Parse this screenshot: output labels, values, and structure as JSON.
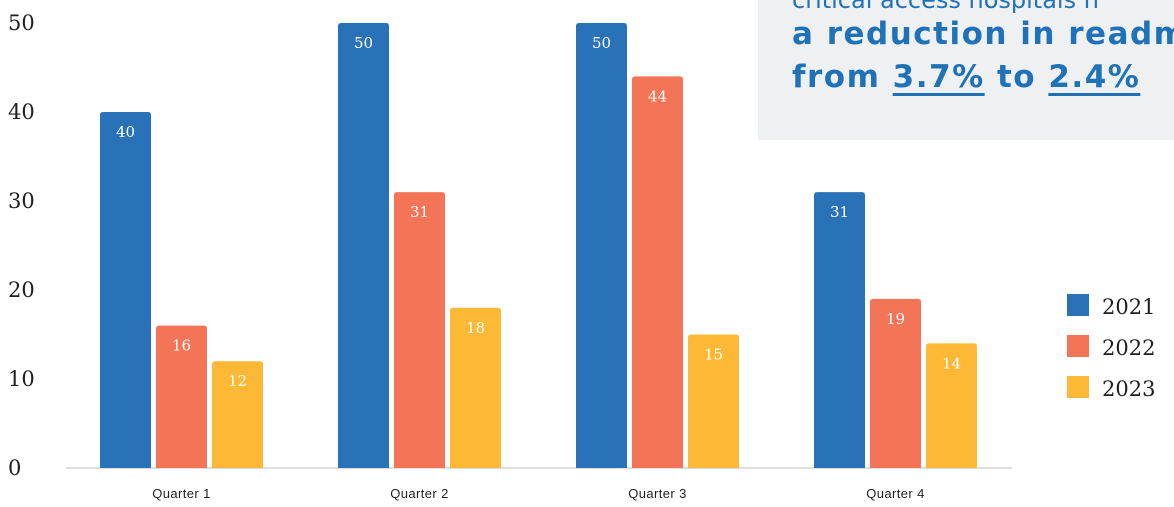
{
  "chart_data": {
    "type": "bar",
    "categories": [
      "Quarter 1",
      "Quarter 2",
      "Quarter 3",
      "Quarter 4"
    ],
    "series": [
      {
        "name": "2021",
        "values": [
          40,
          50,
          50,
          31
        ],
        "color": "#2a72b8"
      },
      {
        "name": "2022",
        "values": [
          16,
          31,
          44,
          19
        ],
        "color": "#f47458"
      },
      {
        "name": "2023",
        "values": [
          12,
          18,
          15,
          14
        ],
        "color": "#fdb935"
      }
    ],
    "yticks": [
      0,
      10,
      20,
      30,
      40,
      50
    ],
    "ylim": [
      0,
      50
    ],
    "legend_position": "right",
    "grid": false
  },
  "callout": {
    "line1": "critical access hospitals h",
    "line2": "a reduction in readm",
    "line3_prefix": "from ",
    "value_from": "3.7%",
    "connector": " to ",
    "value_to": "2.4%"
  }
}
